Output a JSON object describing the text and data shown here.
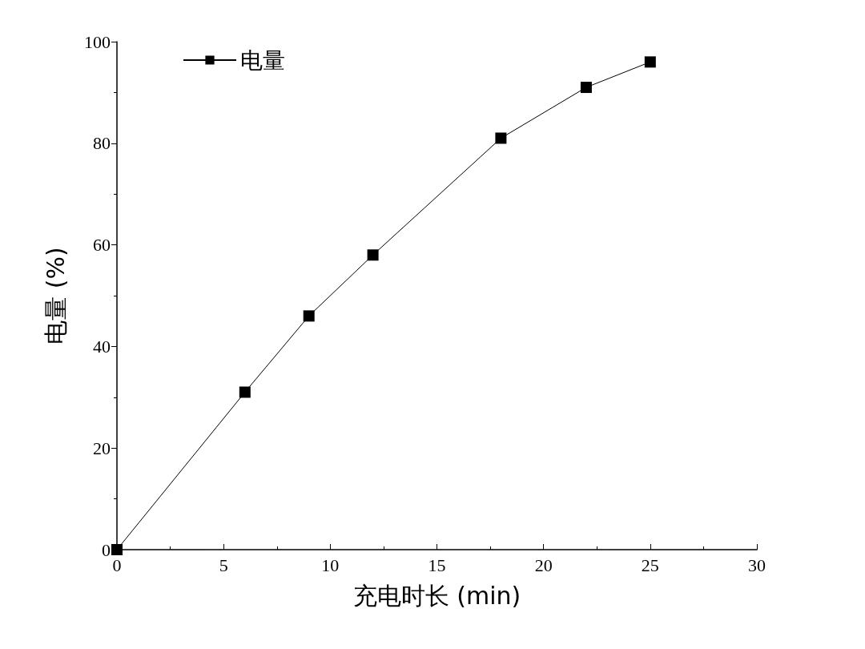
{
  "chart_data": {
    "type": "line",
    "xlabel": "充电时长 (min)",
    "ylabel": "电量 (%)",
    "x": [
      0,
      6,
      9,
      12,
      18,
      22,
      25
    ],
    "series": [
      {
        "name": "电量",
        "color": "#000000",
        "values": [
          0,
          31,
          46,
          58,
          81,
          91,
          96
        ]
      }
    ],
    "xlim": [
      0,
      30
    ],
    "ylim": [
      0,
      100
    ],
    "xticks": [
      0,
      5,
      10,
      15,
      20,
      25,
      30
    ],
    "yticks": [
      0,
      20,
      40,
      60,
      80,
      100
    ],
    "grid": false,
    "legend": "top left",
    "marker": "square",
    "line_style": "solid"
  }
}
